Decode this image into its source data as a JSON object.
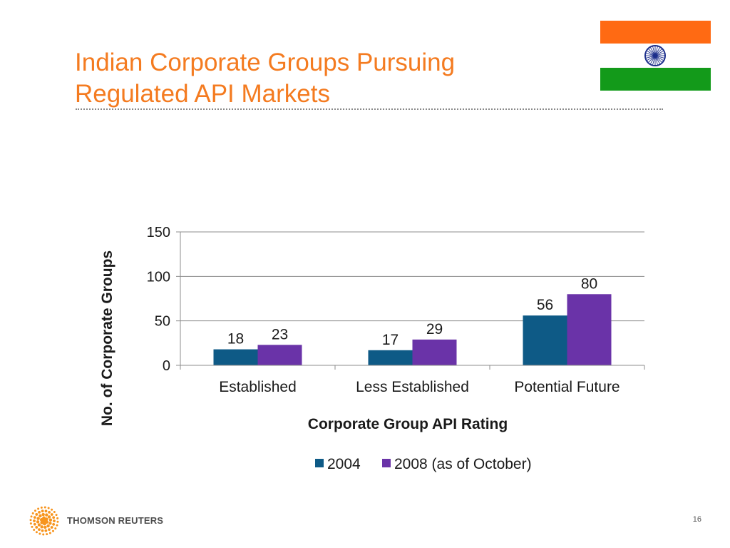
{
  "slide": {
    "title_line1": "Indian Corporate Groups Pursuing",
    "title_line2": "Regulated API Markets",
    "page_number": "16"
  },
  "footer": {
    "brand": "THOMSON REUTERS"
  },
  "colors": {
    "title": "#F47B20",
    "series_2004": "#0E5A86",
    "series_2008": "#6A33A8",
    "flag_saffron": "#FF6A13",
    "flag_green": "#139A1A",
    "chakra": "#1D2F8C",
    "logo": "#F7941D"
  },
  "icons": {
    "flag": "india-flag-icon",
    "logo": "thomson-reuters-logo-icon"
  },
  "chart_data": {
    "type": "bar",
    "categories": [
      "Established",
      "Less Established",
      "Potential Future"
    ],
    "series": [
      {
        "name": "2004",
        "values": [
          18,
          17,
          56
        ]
      },
      {
        "name": "2008 (as of October)",
        "values": [
          23,
          29,
          80
        ]
      }
    ],
    "xlabel": "Corporate Group API Rating",
    "ylabel": "No. of Corporate Groups",
    "ylim": [
      0,
      150
    ],
    "yticks": [
      0,
      50,
      100,
      150
    ],
    "grid": true,
    "legend": "bottom",
    "data_labels": true
  }
}
